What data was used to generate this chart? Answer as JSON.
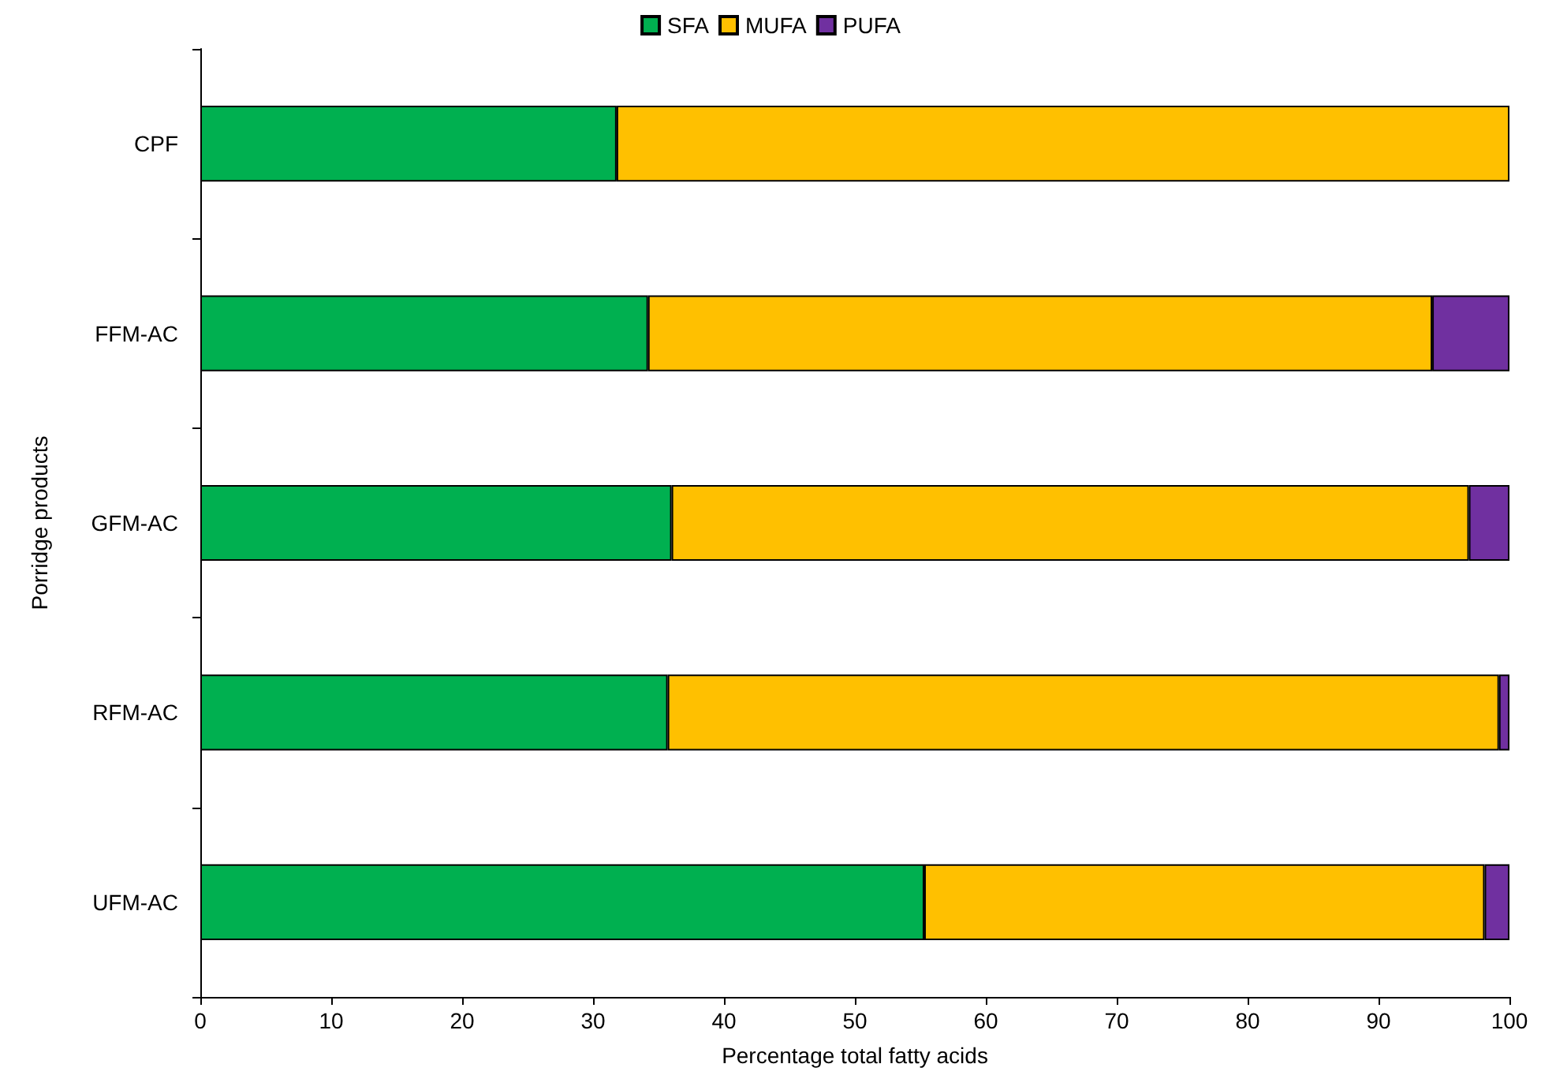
{
  "chart_data": {
    "type": "bar",
    "orientation": "horizontal",
    "stacked": true,
    "xlabel": "Percentage total fatty acids",
    "ylabel": "Porridge products",
    "categories": [
      "CPF",
      "FFM-AC",
      "GFM-AC",
      "RFM-AC",
      "UFM-AC"
    ],
    "series": [
      {
        "name": "SFA",
        "color": "#00b050",
        "values": [
          31.8,
          34.2,
          36.0,
          35.7,
          55.3
        ]
      },
      {
        "name": "MUFA",
        "color": "#ffc000",
        "values": [
          68.2,
          59.9,
          60.9,
          63.5,
          42.8
        ]
      },
      {
        "name": "PUFA",
        "color": "#7030a0",
        "values": [
          0,
          5.9,
          3.1,
          0.8,
          1.9
        ]
      }
    ],
    "xlim": [
      0,
      100
    ],
    "xticks": [
      0,
      10,
      20,
      30,
      40,
      50,
      60,
      70,
      80,
      90,
      100
    ],
    "grid": false,
    "legend": "top"
  }
}
